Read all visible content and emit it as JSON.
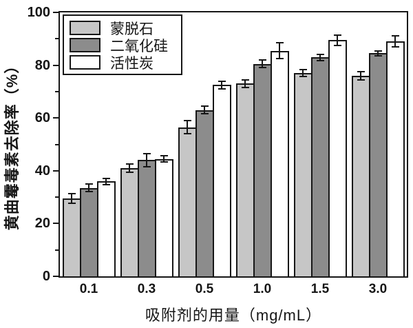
{
  "chart_data": {
    "type": "bar",
    "title": "",
    "xlabel": "吸附剂的用量（mg/mL）",
    "ylabel": "黄曲霉毒素去除率（%）",
    "categories": [
      "0.1",
      "0.3",
      "0.5",
      "1.0",
      "1.5",
      "3.0"
    ],
    "series": [
      {
        "name": "蒙脱石",
        "color": "#c6c6c6",
        "values": [
          29.5,
          41.0,
          56.5,
          73.0,
          77.0,
          76.0
        ],
        "errors": [
          1.8,
          1.5,
          2.5,
          1.5,
          1.2,
          1.5
        ]
      },
      {
        "name": "二氧化硅",
        "color": "#8c8c8c",
        "values": [
          33.5,
          44.0,
          63.0,
          80.5,
          83.0,
          84.5
        ],
        "errors": [
          1.5,
          2.5,
          1.5,
          1.5,
          1.2,
          1.0
        ]
      },
      {
        "name": "活性炭",
        "color": "#ffffff",
        "values": [
          36.0,
          44.5,
          72.5,
          85.5,
          89.5,
          89.0
        ],
        "errors": [
          1.2,
          1.2,
          1.5,
          3.0,
          2.0,
          2.0
        ]
      }
    ],
    "ylim": [
      0,
      100
    ],
    "yticks": [
      0,
      20,
      40,
      60,
      80,
      100
    ],
    "yticks_minor": [
      10,
      30,
      50,
      70,
      90
    ],
    "grid": false,
    "legend_position": "top-left",
    "axis_color": "#161616",
    "error_bar_color": "#161616"
  }
}
